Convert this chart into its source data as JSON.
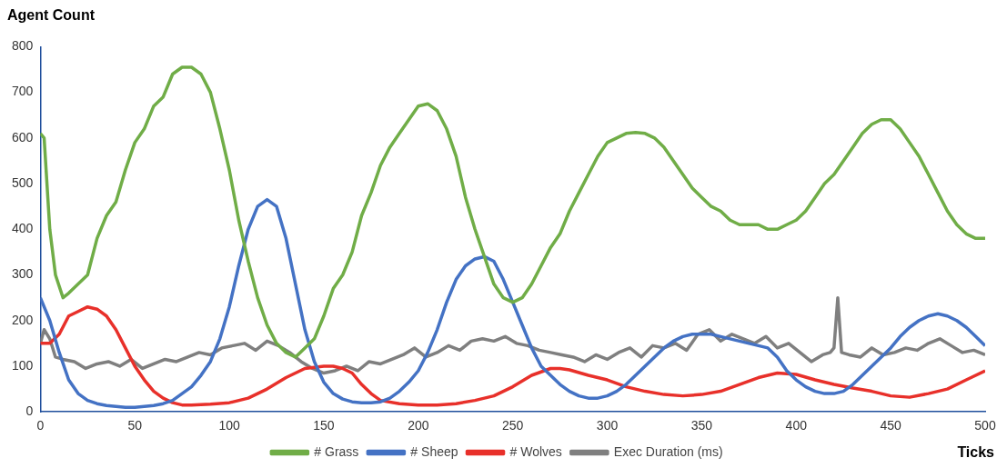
{
  "chart_data": {
    "type": "line",
    "xlabel": "Ticks",
    "ylabel": "Agent Count",
    "xlim": [
      0,
      500
    ],
    "xticks": [
      0,
      50,
      100,
      150,
      200,
      250,
      300,
      350,
      400,
      450,
      500
    ],
    "ylim": [
      0,
      800
    ],
    "yticks": [
      0,
      100,
      200,
      300,
      400,
      500,
      600,
      700,
      800
    ],
    "grid": false,
    "legend": "bottom",
    "marker": "none",
    "line_style": "solid",
    "series": [
      {
        "name": "# Grass",
        "color": "#70ad47",
        "x": [
          0,
          2,
          5,
          8,
          12,
          15,
          20,
          25,
          30,
          35,
          40,
          45,
          50,
          55,
          60,
          65,
          70,
          75,
          80,
          85,
          90,
          95,
          100,
          105,
          110,
          115,
          120,
          125,
          130,
          135,
          140,
          145,
          150,
          155,
          160,
          165,
          170,
          175,
          180,
          185,
          190,
          195,
          200,
          205,
          210,
          215,
          220,
          225,
          230,
          235,
          240,
          245,
          250,
          255,
          260,
          265,
          270,
          275,
          280,
          285,
          290,
          295,
          300,
          305,
          310,
          315,
          320,
          325,
          330,
          335,
          340,
          345,
          350,
          355,
          360,
          365,
          370,
          375,
          380,
          385,
          390,
          395,
          400,
          405,
          410,
          415,
          420,
          425,
          430,
          435,
          440,
          445,
          450,
          455,
          460,
          465,
          470,
          475,
          480,
          485,
          490,
          495,
          500
        ],
        "values": [
          610,
          600,
          400,
          300,
          250,
          260,
          280,
          300,
          380,
          430,
          460,
          530,
          590,
          620,
          670,
          690,
          740,
          755,
          755,
          740,
          700,
          620,
          530,
          420,
          330,
          250,
          190,
          150,
          130,
          120,
          140,
          160,
          210,
          270,
          300,
          350,
          430,
          480,
          540,
          580,
          610,
          640,
          670,
          675,
          660,
          620,
          560,
          470,
          400,
          340,
          280,
          250,
          240,
          250,
          280,
          320,
          360,
          390,
          440,
          480,
          520,
          560,
          590,
          600,
          610,
          612,
          610,
          600,
          580,
          550,
          520,
          490,
          470,
          450,
          440,
          420,
          410,
          410,
          410,
          400,
          400,
          410,
          420,
          440,
          470,
          500,
          520,
          550,
          580,
          610,
          630,
          640,
          640,
          620,
          590,
          560,
          520,
          480,
          440,
          410,
          390,
          380,
          380
        ]
      },
      {
        "name": "# Sheep",
        "color": "#4472c4",
        "x": [
          0,
          5,
          10,
          15,
          20,
          25,
          30,
          35,
          40,
          45,
          50,
          55,
          60,
          65,
          70,
          75,
          80,
          85,
          90,
          95,
          100,
          105,
          110,
          115,
          120,
          125,
          130,
          135,
          140,
          145,
          150,
          155,
          160,
          165,
          170,
          175,
          180,
          185,
          190,
          195,
          200,
          205,
          210,
          215,
          220,
          225,
          230,
          235,
          240,
          245,
          250,
          255,
          260,
          265,
          270,
          275,
          280,
          285,
          290,
          295,
          300,
          305,
          310,
          315,
          320,
          325,
          330,
          335,
          340,
          345,
          350,
          355,
          360,
          365,
          370,
          375,
          380,
          385,
          390,
          395,
          400,
          405,
          410,
          415,
          420,
          425,
          430,
          435,
          440,
          445,
          450,
          455,
          460,
          465,
          470,
          475,
          480,
          485,
          490,
          495,
          500
        ],
        "values": [
          250,
          200,
          130,
          70,
          40,
          25,
          18,
          14,
          12,
          10,
          10,
          12,
          14,
          18,
          25,
          40,
          55,
          80,
          110,
          160,
          230,
          320,
          400,
          450,
          465,
          450,
          380,
          280,
          180,
          110,
          65,
          40,
          28,
          22,
          20,
          20,
          22,
          30,
          45,
          65,
          90,
          130,
          180,
          240,
          290,
          320,
          335,
          340,
          330,
          290,
          240,
          190,
          140,
          100,
          80,
          60,
          45,
          35,
          30,
          30,
          35,
          45,
          60,
          80,
          100,
          120,
          140,
          155,
          165,
          170,
          170,
          170,
          165,
          160,
          155,
          150,
          145,
          140,
          120,
          90,
          70,
          55,
          45,
          40,
          40,
          45,
          60,
          80,
          100,
          120,
          140,
          165,
          185,
          200,
          210,
          215,
          210,
          200,
          185,
          165,
          145
        ]
      },
      {
        "name": "# Wolves",
        "color": "#e8302a",
        "x": [
          0,
          5,
          10,
          15,
          20,
          25,
          30,
          35,
          40,
          45,
          50,
          55,
          60,
          65,
          70,
          75,
          80,
          90,
          100,
          110,
          120,
          130,
          140,
          150,
          155,
          160,
          165,
          170,
          175,
          180,
          190,
          200,
          210,
          220,
          230,
          240,
          250,
          260,
          270,
          275,
          280,
          290,
          300,
          310,
          320,
          330,
          340,
          350,
          360,
          370,
          380,
          390,
          400,
          410,
          420,
          430,
          440,
          450,
          460,
          470,
          480,
          490,
          500
        ],
        "values": [
          150,
          150,
          170,
          210,
          220,
          230,
          225,
          210,
          180,
          140,
          100,
          70,
          45,
          30,
          20,
          15,
          15,
          17,
          20,
          30,
          50,
          75,
          95,
          100,
          100,
          95,
          85,
          60,
          40,
          25,
          18,
          15,
          15,
          18,
          25,
          35,
          55,
          80,
          95,
          95,
          92,
          80,
          70,
          55,
          45,
          38,
          35,
          38,
          45,
          60,
          75,
          85,
          82,
          70,
          60,
          52,
          45,
          35,
          32,
          40,
          50,
          70,
          90
        ]
      },
      {
        "name": "Exec Duration (ms)",
        "color": "#7f7f7f",
        "x": [
          0,
          2,
          5,
          8,
          12,
          18,
          24,
          30,
          36,
          42,
          48,
          54,
          60,
          66,
          72,
          78,
          84,
          90,
          96,
          102,
          108,
          114,
          120,
          126,
          132,
          138,
          144,
          150,
          156,
          162,
          168,
          174,
          180,
          186,
          192,
          198,
          204,
          210,
          216,
          222,
          228,
          234,
          240,
          246,
          252,
          258,
          264,
          270,
          276,
          282,
          288,
          294,
          300,
          306,
          312,
          318,
          324,
          330,
          336,
          342,
          348,
          354,
          360,
          366,
          372,
          378,
          384,
          390,
          396,
          402,
          408,
          414,
          418,
          420,
          422,
          424,
          428,
          434,
          440,
          446,
          452,
          458,
          464,
          470,
          476,
          482,
          488,
          494,
          500
        ],
        "values": [
          150,
          180,
          160,
          120,
          115,
          110,
          95,
          105,
          110,
          100,
          115,
          95,
          105,
          115,
          110,
          120,
          130,
          125,
          140,
          145,
          150,
          135,
          155,
          145,
          130,
          110,
          95,
          85,
          90,
          100,
          90,
          110,
          105,
          115,
          125,
          140,
          120,
          130,
          145,
          135,
          155,
          160,
          155,
          165,
          150,
          145,
          135,
          130,
          125,
          120,
          110,
          125,
          115,
          130,
          140,
          120,
          145,
          140,
          150,
          135,
          170,
          180,
          155,
          170,
          160,
          150,
          165,
          140,
          150,
          130,
          110,
          125,
          130,
          140,
          250,
          130,
          125,
          120,
          140,
          125,
          130,
          140,
          135,
          150,
          160,
          145,
          130,
          135,
          125
        ]
      }
    ]
  }
}
